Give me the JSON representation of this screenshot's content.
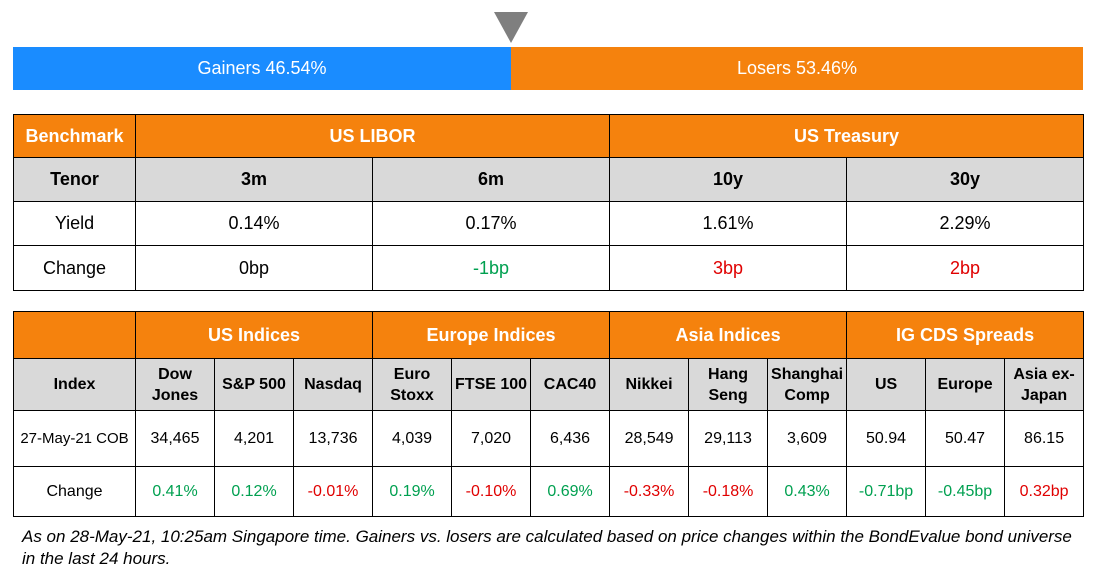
{
  "ratio_bar": {
    "gainers_label": "Gainers 46.54%",
    "losers_label": "Losers 53.46%",
    "gainers_fraction": 0.4654,
    "losers_fraction": 0.5346,
    "colors": {
      "gainers": "#1a8cff",
      "losers": "#f5820d",
      "marker": "#7f7f7f"
    },
    "marker_icon": "down-triangle-icon"
  },
  "rates_table": {
    "benchmark_label": "Benchmark",
    "groups": [
      "US LIBOR",
      "US Treasury"
    ],
    "tenor_label": "Tenor",
    "tenors": [
      "3m",
      "6m",
      "10y",
      "30y"
    ],
    "yield_label": "Yield",
    "yields": [
      "0.14%",
      "0.17%",
      "1.61%",
      "2.29%"
    ],
    "change_label": "Change",
    "changes": [
      {
        "text": "0bp",
        "tone": "neutral"
      },
      {
        "text": "-1bp",
        "tone": "green"
      },
      {
        "text": "3bp",
        "tone": "red"
      },
      {
        "text": "2bp",
        "tone": "red"
      }
    ]
  },
  "indices_table": {
    "groups": [
      "US Indices",
      "Europe Indices",
      "Asia Indices",
      "IG CDS Spreads"
    ],
    "index_label": "Index",
    "columns": [
      [
        "Dow",
        "Jones"
      ],
      [
        "S&P 500"
      ],
      [
        "Nasdaq"
      ],
      [
        "Euro",
        "Stoxx"
      ],
      [
        "FTSE 100"
      ],
      [
        "CAC40"
      ],
      [
        "Nikkei"
      ],
      [
        "Hang",
        "Seng"
      ],
      [
        "Shanghai",
        "Comp"
      ],
      [
        "US"
      ],
      [
        "Europe"
      ],
      [
        "Asia ex-",
        "Japan"
      ]
    ],
    "row_label": "27-May-21 COB",
    "values": [
      "34,465",
      "4,201",
      "13,736",
      "4,039",
      "7,020",
      "6,436",
      "28,549",
      "29,113",
      "3,609",
      "50.94",
      "50.47",
      "86.15"
    ],
    "change_label": "Change",
    "changes": [
      {
        "text": "0.41%",
        "tone": "green"
      },
      {
        "text": "0.12%",
        "tone": "green"
      },
      {
        "text": "-0.01%",
        "tone": "red"
      },
      {
        "text": "0.19%",
        "tone": "green"
      },
      {
        "text": "-0.10%",
        "tone": "red"
      },
      {
        "text": "0.69%",
        "tone": "green"
      },
      {
        "text": "-0.33%",
        "tone": "red"
      },
      {
        "text": "-0.18%",
        "tone": "red"
      },
      {
        "text": "0.43%",
        "tone": "green"
      },
      {
        "text": "-0.71bp",
        "tone": "green"
      },
      {
        "text": "-0.45bp",
        "tone": "green"
      },
      {
        "text": "0.32bp",
        "tone": "red"
      }
    ]
  },
  "footnote": "As on 28-May-21, 10:25am Singapore time. Gainers vs. losers are calculated based on price changes within the BondEvalue bond universe in the last 24 hours."
}
